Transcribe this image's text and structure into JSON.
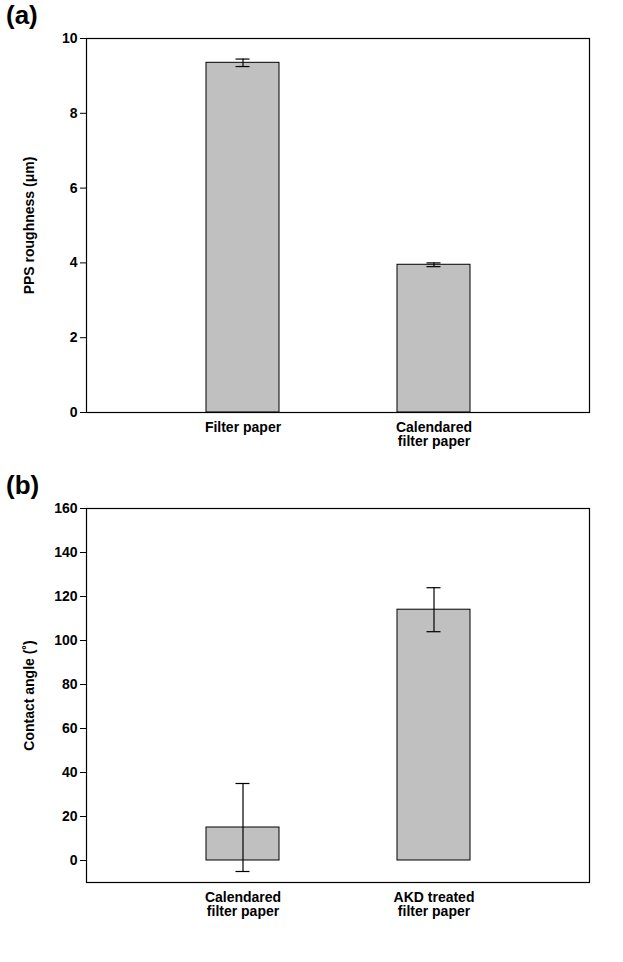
{
  "chart_data": [
    {
      "type": "bar",
      "title": "(a)",
      "categories": [
        "Filter paper",
        "Calendared filter paper"
      ],
      "values": [
        9.35,
        3.95
      ],
      "errors": [
        0.1,
        0.05
      ],
      "y_label": "PPS roughness (μm)",
      "color": "#c0c0c0",
      "ylim": [
        0,
        10
      ],
      "yticks": [
        0,
        2,
        4,
        6,
        8,
        10
      ],
      "grid": false
    },
    {
      "type": "bar",
      "title": "(b)",
      "categories": [
        "Calendared filter paper",
        "AKD treated filter paper"
      ],
      "values": [
        15,
        114
      ],
      "errors": [
        20,
        10
      ],
      "y_label": "Contact angle (˚)",
      "color": "#c0c0c0",
      "ylim": [
        -10,
        160
      ],
      "yticks": [
        0,
        20,
        40,
        60,
        80,
        100,
        120,
        140,
        160
      ],
      "grid": false
    }
  ]
}
